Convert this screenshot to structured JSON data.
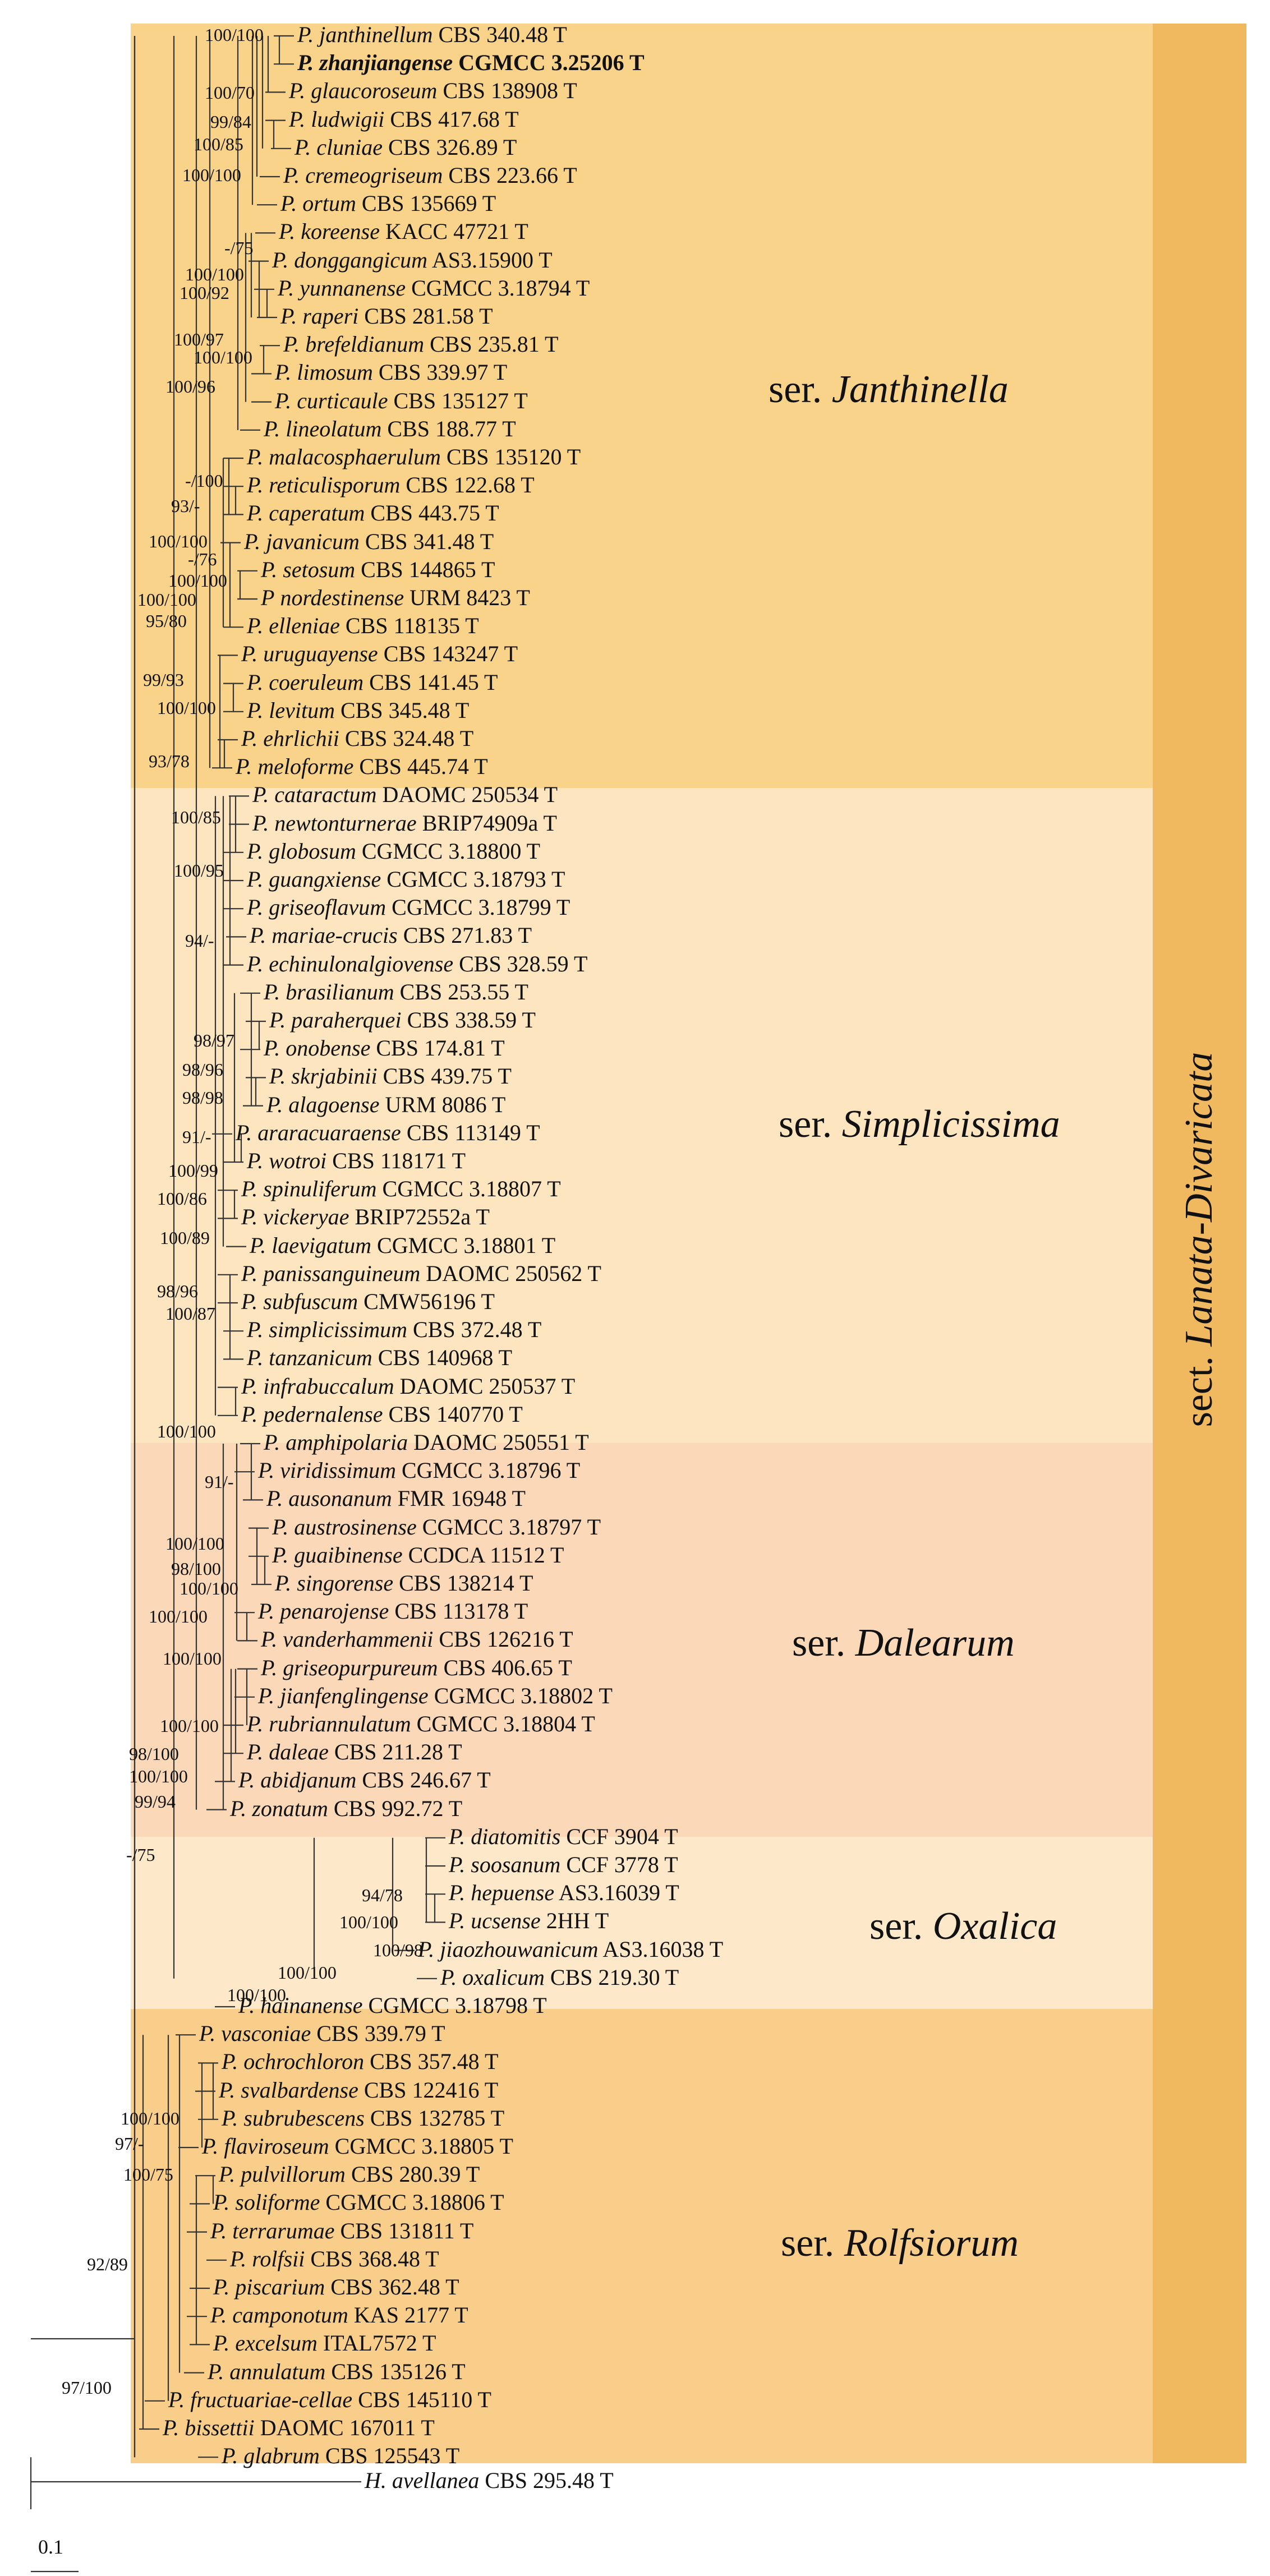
{
  "colors": {
    "janthinella": "#fad38a",
    "simplicissima": "#fde6bf",
    "dalearum": "#fbd9b8",
    "oxalica": "#fde9c9",
    "rolfsiorum": "#f9ce8b",
    "section": "#f0b960",
    "line": "#333333"
  },
  "section_label": {
    "prefix": "sect.",
    "name": "Lanata-Divaricata"
  },
  "series": [
    {
      "id": "janthinella",
      "prefix": "ser.",
      "name": "Janthinella"
    },
    {
      "id": "simplicissima",
      "prefix": "ser.",
      "name": "Simplicissima"
    },
    {
      "id": "dalearum",
      "prefix": "ser.",
      "name": "Dalearum"
    },
    {
      "id": "oxalica",
      "prefix": "ser.",
      "name": "Oxalica"
    },
    {
      "id": "rolfsiorum",
      "prefix": "ser.",
      "name": "Rolfsiorum"
    }
  ],
  "scale_bar": {
    "label": "0.1"
  },
  "taxa": [
    {
      "genus": "P.",
      "epithet": "janthinellum",
      "strain": "CBS 340.48 T",
      "bl": 0.01
    },
    {
      "genus": "P.",
      "epithet": "zhanjiangense",
      "strain": "CGMCC 3.25206 T",
      "bold": true,
      "bl": 0.01
    },
    {
      "genus": "P.",
      "epithet": "glaucoroseum",
      "strain": "CBS 138908 T",
      "bl": 0.01
    },
    {
      "genus": "P.",
      "epithet": "ludwigii",
      "strain": "CBS 417.68 T",
      "bl": 0.01
    },
    {
      "genus": "P.",
      "epithet": "cluniae",
      "strain": "CBS 326.89 T",
      "bl": 0.01
    },
    {
      "genus": "P.",
      "epithet": "cremeogriseum",
      "strain": "CBS 223.66 T",
      "bl": 0.01
    },
    {
      "genus": "P.",
      "epithet": "ortum",
      "strain": "CBS 135669 T",
      "bl": 0.01
    },
    {
      "genus": "P.",
      "epithet": "koreense",
      "strain": "KACC 47721 T",
      "bl": 0.01
    },
    {
      "genus": "P.",
      "epithet": "donggangicum",
      "strain": "AS3.15900 T",
      "bl": 0.01
    },
    {
      "genus": "P.",
      "epithet": "yunnanense",
      "strain": "CGMCC 3.18794 T",
      "bl": 0.01
    },
    {
      "genus": "P.",
      "epithet": "raperi",
      "strain": "CBS 281.58 T",
      "bl": 0.01
    },
    {
      "genus": "P.",
      "epithet": "brefeldianum",
      "strain": "CBS 235.81 T",
      "bl": 0.01
    },
    {
      "genus": "P.",
      "epithet": "limosum",
      "strain": "CBS 339.97 T",
      "bl": 0.01
    },
    {
      "genus": "P.",
      "epithet": "curticaule",
      "strain": "CBS 135127 T",
      "bl": 0.01
    },
    {
      "genus": "P.",
      "epithet": "lineolatum",
      "strain": "CBS 188.77 T",
      "bl": 0.01
    },
    {
      "genus": "P.",
      "epithet": "malacosphaerulum",
      "strain": "CBS 135120 T",
      "bl": 0.01
    },
    {
      "genus": "P.",
      "epithet": "reticulisporum",
      "strain": "CBS 122.68 T",
      "bl": 0.01
    },
    {
      "genus": "P.",
      "epithet": "caperatum",
      "strain": "CBS 443.75 T",
      "bl": 0.01
    },
    {
      "genus": "P.",
      "epithet": "javanicum",
      "strain": "CBS 341.48 T",
      "bl": 0.01
    },
    {
      "genus": "P.",
      "epithet": "setosum",
      "strain": "CBS 144865 T",
      "bl": 0.01
    },
    {
      "genus": "P",
      "epithet": "nordestinense",
      "strain": "URM 8423 T",
      "bl": 0.01
    },
    {
      "genus": "P.",
      "epithet": "elleniae",
      "strain": "CBS 118135 T",
      "bl": 0.01
    },
    {
      "genus": "P.",
      "epithet": "uruguayense",
      "strain": "CBS 143247 T",
      "bl": 0.01
    },
    {
      "genus": "P.",
      "epithet": "coeruleum",
      "strain": "CBS 141.45 T",
      "bl": 0.01
    },
    {
      "genus": "P.",
      "epithet": "levitum",
      "strain": "CBS 345.48 T",
      "bl": 0.01
    },
    {
      "genus": "P.",
      "epithet": "ehrlichii",
      "strain": "CBS 324.48 T",
      "bl": 0.01
    },
    {
      "genus": "P.",
      "epithet": "meloforme",
      "strain": "CBS 445.74 T",
      "bl": 0.01
    },
    {
      "genus": "P.",
      "epithet": "cataractum",
      "strain": "DAOMC 250534 T",
      "bl": 0.01
    },
    {
      "genus": "P.",
      "epithet": "newtonturnerae",
      "strain": "BRIP74909a T",
      "bl": 0.01
    },
    {
      "genus": "P.",
      "epithet": "globosum",
      "strain": "CGMCC 3.18800 T",
      "bl": 0.01
    },
    {
      "genus": "P.",
      "epithet": "guangxiense",
      "strain": "CGMCC 3.18793 T",
      "bl": 0.01
    },
    {
      "genus": "P.",
      "epithet": "griseoflavum",
      "strain": "CGMCC 3.18799 T",
      "bl": 0.01
    },
    {
      "genus": "P.",
      "epithet": "mariae-crucis",
      "strain": "CBS 271.83 T",
      "bl": 0.01
    },
    {
      "genus": "P.",
      "epithet": "echinulonalgiovense",
      "strain": "CBS 328.59 T",
      "bl": 0.01
    },
    {
      "genus": "P.",
      "epithet": "brasilianum",
      "strain": "CBS 253.55 T",
      "bl": 0.01
    },
    {
      "genus": "P.",
      "epithet": "paraherquei",
      "strain": "CBS 338.59 T",
      "bl": 0.01
    },
    {
      "genus": "P.",
      "epithet": "onobense",
      "strain": "CBS 174.81 T",
      "bl": 0.01
    },
    {
      "genus": "P.",
      "epithet": "skrjabinii",
      "strain": "CBS 439.75 T",
      "bl": 0.01
    },
    {
      "genus": "P.",
      "epithet": "alagoense",
      "strain": "URM 8086 T",
      "bl": 0.01
    },
    {
      "genus": "P.",
      "epithet": "araracuaraense",
      "strain": "CBS 113149 T",
      "bl": 0.01
    },
    {
      "genus": "P.",
      "epithet": "wotroi",
      "strain": "CBS 118171 T",
      "bl": 0.01
    },
    {
      "genus": "P.",
      "epithet": "spinuliferum",
      "strain": "CGMCC 3.18807 T",
      "bl": 0.01
    },
    {
      "genus": "P.",
      "epithet": "vickeryae",
      "strain": "BRIP72552a T",
      "bl": 0.01
    },
    {
      "genus": "P.",
      "epithet": "laevigatum",
      "strain": "CGMCC 3.18801 T",
      "bl": 0.01
    },
    {
      "genus": "P.",
      "epithet": "panissanguineum",
      "strain": "DAOMC 250562 T",
      "bl": 0.01
    },
    {
      "genus": "P.",
      "epithet": "subfuscum",
      "strain": "CMW56196 T",
      "bl": 0.01
    },
    {
      "genus": "P.",
      "epithet": "simplicissimum",
      "strain": "CBS 372.48 T",
      "bl": 0.01
    },
    {
      "genus": "P.",
      "epithet": "tanzanicum",
      "strain": "CBS 140968 T",
      "bl": 0.01
    },
    {
      "genus": "P.",
      "epithet": "infrabuccalum",
      "strain": "DAOMC 250537 T",
      "bl": 0.01
    },
    {
      "genus": "P.",
      "epithet": "pedernalense",
      "strain": "CBS 140770 T",
      "bl": 0.01
    },
    {
      "genus": "P.",
      "epithet": "amphipolaria",
      "strain": "DAOMC 250551 T",
      "bl": 0.01
    },
    {
      "genus": "P.",
      "epithet": "viridissimum",
      "strain": "CGMCC 3.18796 T",
      "bl": 0.01
    },
    {
      "genus": "P.",
      "epithet": "ausonanum",
      "strain": "FMR 16948 T",
      "bl": 0.01
    },
    {
      "genus": "P.",
      "epithet": "austrosinense",
      "strain": "CGMCC 3.18797 T",
      "bl": 0.01
    },
    {
      "genus": "P.",
      "epithet": "guaibinense",
      "strain": "CCDCA 11512 T",
      "bl": 0.01
    },
    {
      "genus": "P.",
      "epithet": "singorense",
      "strain": "CBS 138214 T",
      "bl": 0.01
    },
    {
      "genus": "P.",
      "epithet": "penarojense",
      "strain": "CBS 113178 T",
      "bl": 0.01
    },
    {
      "genus": "P.",
      "epithet": "vanderhammenii",
      "strain": "CBS 126216 T",
      "bl": 0.01
    },
    {
      "genus": "P.",
      "epithet": "griseopurpureum",
      "strain": "CBS 406.65 T",
      "bl": 0.01
    },
    {
      "genus": "P.",
      "epithet": "jianfenglingense",
      "strain": "CGMCC 3.18802 T",
      "bl": 0.01
    },
    {
      "genus": "P.",
      "epithet": "rubriannulatum",
      "strain": "CGMCC 3.18804 T",
      "bl": 0.01
    },
    {
      "genus": "P.",
      "epithet": "daleae",
      "strain": "CBS 211.28 T",
      "bl": 0.01
    },
    {
      "genus": "P.",
      "epithet": "abidjanum",
      "strain": "CBS 246.67 T",
      "bl": 0.01
    },
    {
      "genus": "P.",
      "epithet": "zonatum",
      "strain": "CBS 992.72 T",
      "bl": 0.01
    },
    {
      "genus": "P.",
      "epithet": "diatomitis",
      "strain": "CCF 3904 T",
      "bl": 0.01
    },
    {
      "genus": "P.",
      "epithet": "soosanum",
      "strain": "CCF 3778 T",
      "bl": 0.01
    },
    {
      "genus": "P.",
      "epithet": "hepuense",
      "strain": "AS3.16039 T",
      "bl": 0.01
    },
    {
      "genus": "P.",
      "epithet": "ucsense",
      "strain": "2HH T",
      "bl": 0.01
    },
    {
      "genus": "P.",
      "epithet": "jiaozhouwanicum",
      "strain": "AS3.16038 T",
      "bl": 0.01
    },
    {
      "genus": "P.",
      "epithet": "oxalicum",
      "strain": "CBS 219.30 T",
      "bl": 0.01
    },
    {
      "genus": "P.",
      "epithet": "hainanense",
      "strain": "CGMCC 3.18798 T",
      "bl": 0.01
    },
    {
      "genus": "P.",
      "epithet": "vasconiae",
      "strain": "CBS 339.79 T",
      "bl": 0.01
    },
    {
      "genus": "P.",
      "epithet": "ochrochloron",
      "strain": "CBS 357.48 T",
      "bl": 0.01
    },
    {
      "genus": "P.",
      "epithet": "svalbardense",
      "strain": "CBS 122416 T",
      "bl": 0.01
    },
    {
      "genus": "P.",
      "epithet": "subrubescens",
      "strain": "CBS 132785 T",
      "bl": 0.01
    },
    {
      "genus": "P.",
      "epithet": "flaviroseum",
      "strain": "CGMCC 3.18805 T",
      "bl": 0.01
    },
    {
      "genus": "P.",
      "epithet": "pulvillorum",
      "strain": "CBS 280.39 T",
      "bl": 0.01
    },
    {
      "genus": "P.",
      "epithet": "soliforme",
      "strain": "CGMCC 3.18806 T",
      "bl": 0.01
    },
    {
      "genus": "P.",
      "epithet": "terrarumae",
      "strain": "CBS 131811 T",
      "bl": 0.01
    },
    {
      "genus": "P.",
      "epithet": "rolfsii",
      "strain": "CBS 368.48 T",
      "bl": 0.01
    },
    {
      "genus": "P.",
      "epithet": "piscarium",
      "strain": "CBS 362.48 T",
      "bl": 0.01
    },
    {
      "genus": "P.",
      "epithet": "camponotum",
      "strain": "KAS 2177 T",
      "bl": 0.01
    },
    {
      "genus": "P.",
      "epithet": "excelsum",
      "strain": "ITAL7572 T",
      "bl": 0.01
    },
    {
      "genus": "P.",
      "epithet": "annulatum",
      "strain": "CBS 135126 T",
      "bl": 0.01
    },
    {
      "genus": "P.",
      "epithet": "fructuariae-cellae",
      "strain": "CBS 145110 T",
      "bl": 0.01
    },
    {
      "genus": "P.",
      "epithet": "bissettii",
      "strain": "DAOMC 167011 T",
      "bl": 0.01
    },
    {
      "genus": "P.",
      "epithet": "glabrum",
      "strain": "CBS 125543 T",
      "bl": 0.3
    },
    {
      "genus": "H.",
      "epithet": "avellanea",
      "strain": "CBS 295.48 T",
      "bl": 0.62
    }
  ],
  "supports": [
    "100/100",
    "100/70",
    "99/84",
    "100/85",
    "100/100",
    "-/75",
    "100/100",
    "100/92",
    "100/97",
    "100/100",
    "100/96",
    "-/100",
    "93/-",
    "100/100",
    "-/76",
    "100/100",
    "100/100",
    "95/80",
    "99/93",
    "100/100",
    "93/78",
    "100/85",
    "100/95",
    "94/-",
    "98/97",
    "98/96",
    "98/98",
    "91/-",
    "100/99",
    "100/86",
    "100/89",
    "98/96",
    "100/87",
    "100/100",
    "91/-",
    "100/100",
    "98/100",
    "100/100",
    "100/100",
    "100/100",
    "100/100",
    "98/100",
    "100/100",
    "99/94",
    "-/75",
    "94/78",
    "100/100",
    "100/98",
    "100/100",
    "100/100",
    "100/100",
    "97/-",
    "100/75",
    "92/89",
    "97/100"
  ]
}
